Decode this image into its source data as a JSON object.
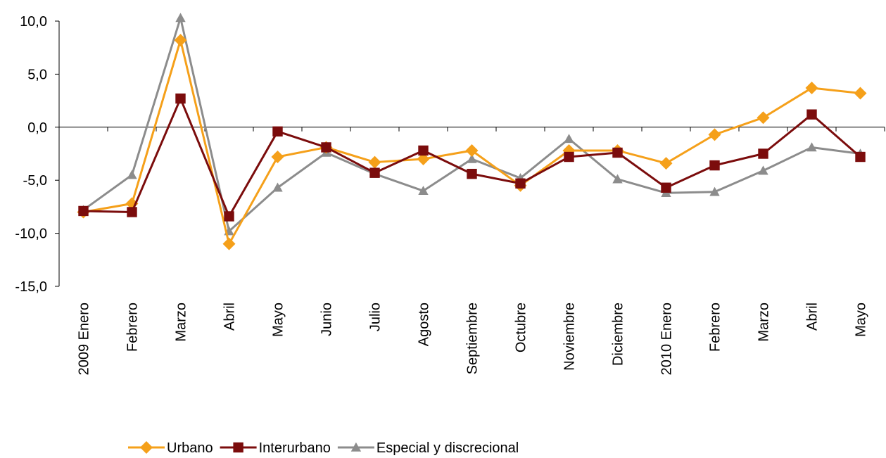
{
  "chart_data": {
    "type": "line",
    "title": "",
    "xlabel": "",
    "ylabel": "",
    "ylim": [
      -15,
      10
    ],
    "yticks": [
      10,
      5,
      0,
      -5,
      -10,
      -15
    ],
    "ytick_labels": [
      "10,0",
      "5,0",
      "0,0",
      "-5,0",
      "-10,0",
      "-15,0"
    ],
    "categories": [
      "2009 Enero",
      "Febrero",
      "Marzo",
      "Abril",
      "Mayo",
      "Junio",
      "Julio",
      "Agosto",
      "Septiembre",
      "Octubre",
      "Noviembre",
      "Diciembre",
      "2010 Enero",
      "Febrero",
      "Marzo",
      "Abril",
      "Mayo"
    ],
    "grid": false,
    "legend_position": "bottom",
    "series": [
      {
        "name": "Urbano",
        "color": "#F5A01A",
        "marker": "diamond",
        "values": [
          -8.0,
          -7.2,
          8.2,
          -11.0,
          -2.8,
          -1.9,
          -3.3,
          -3.0,
          -2.2,
          -5.5,
          -2.2,
          -2.2,
          -3.4,
          -0.7,
          0.9,
          3.7,
          3.2
        ]
      },
      {
        "name": "Interurbano",
        "color": "#7B0C0C",
        "marker": "square",
        "values": [
          -7.9,
          -8.0,
          2.7,
          -8.4,
          -0.4,
          -1.9,
          -4.3,
          -2.2,
          -4.4,
          -5.3,
          -2.8,
          -2.4,
          -5.7,
          -3.6,
          -2.5,
          1.2,
          -2.8
        ]
      },
      {
        "name": "Especial y discrecional",
        "color": "#8C8C8C",
        "marker": "triangle",
        "values": [
          -7.8,
          -4.5,
          10.3,
          -9.8,
          -5.7,
          -2.4,
          -4.4,
          -6.0,
          -3.0,
          -4.8,
          -1.1,
          -4.9,
          -6.2,
          -6.1,
          -4.1,
          -1.9,
          -2.5
        ]
      }
    ]
  }
}
